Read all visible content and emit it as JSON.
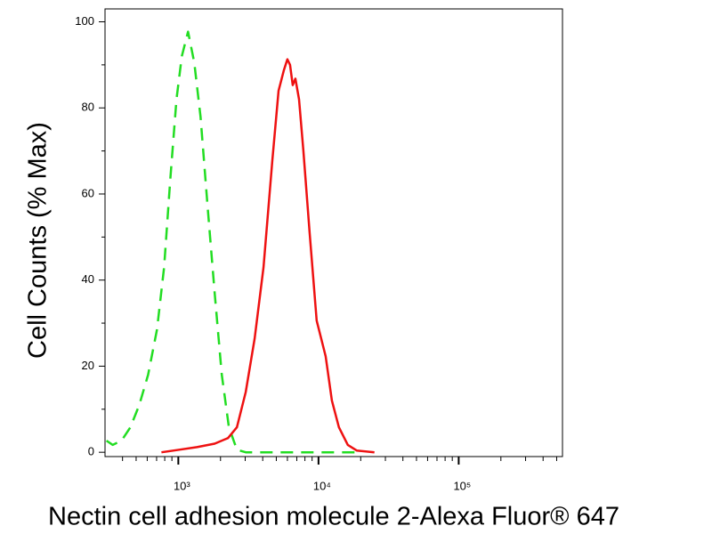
{
  "chart_data": {
    "type": "line",
    "xlabel": "Nectin cell adhesion molecule 2-Alexa Fluor® 647",
    "ylabel": "Cell Counts (% Max)",
    "xscale": "log",
    "xlim": [
      300,
      550000
    ],
    "ylim": [
      -1,
      103
    ],
    "xticks": [
      {
        "value": 1000,
        "label": "10³"
      },
      {
        "value": 10000,
        "label": "10⁴"
      },
      {
        "value": 100000,
        "label": "10⁵"
      }
    ],
    "xminorticks": [
      400,
      500,
      600,
      700,
      800,
      900,
      2000,
      3000,
      4000,
      5000,
      6000,
      7000,
      8000,
      9000,
      20000,
      30000,
      40000,
      50000,
      60000,
      70000,
      80000,
      90000,
      200000,
      300000,
      400000,
      500000
    ],
    "yticks": [
      0,
      20,
      40,
      60,
      80,
      100
    ],
    "yminorticks": [
      10,
      30,
      50,
      70,
      90
    ],
    "series": [
      {
        "color": "#22dd22",
        "style": "dashed",
        "x": [
          307,
          340,
          394,
          455,
          527,
          609,
          705,
          792,
          877,
          971,
          1060,
          1174,
          1300,
          1440,
          1618,
          1817,
          2043,
          2294,
          2617,
          3027,
          4357,
          18720
        ],
        "values": [
          2.7,
          1.7,
          2.7,
          5.8,
          11,
          18,
          28.5,
          43,
          63.6,
          82,
          92,
          97.7,
          90.5,
          78,
          57,
          37,
          18,
          5.8,
          0.6,
          0,
          0,
          0
        ]
      },
      {
        "color": "#ee1111",
        "style": "solid",
        "x": [
          758,
          1015,
          1358,
          1817,
          2261,
          2617,
          3027,
          3500,
          4052,
          4688,
          5188,
          5663,
          6000,
          6270,
          6550,
          6845,
          7260,
          7800,
          8643,
          9706,
          11240,
          12450,
          13990,
          16180,
          18720,
          25050
        ],
        "values": [
          0,
          0.6,
          1.2,
          2,
          3.3,
          5.8,
          14,
          26.4,
          43,
          67.8,
          84,
          88.8,
          91.3,
          90,
          85.3,
          86.8,
          82,
          70,
          51,
          30.6,
          22.3,
          12,
          5.8,
          1.7,
          0.4,
          0
        ]
      }
    ]
  }
}
